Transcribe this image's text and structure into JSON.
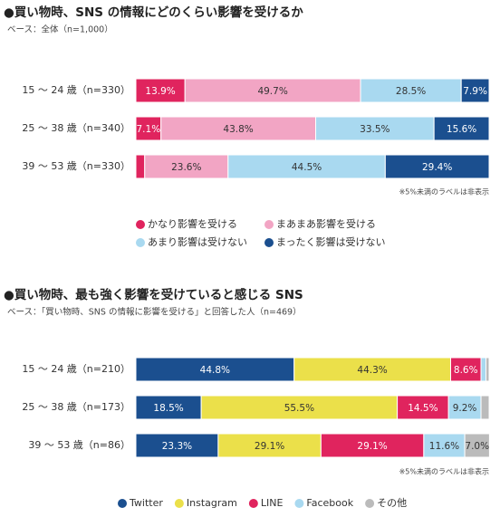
{
  "chart_data": [
    {
      "type": "bar",
      "orientation": "horizontal",
      "stacked": true,
      "title": "●買い物時、SNS の情報にどのくらい影響を受けるか",
      "subtitle": "ベース：全体（n=1,000）",
      "categories": [
        "15 ～ 24 歳（n=330）",
        "25 ～ 38 歳（n=340）",
        "39 ～ 53 歳（n=330）"
      ],
      "xlim": [
        0,
        100
      ],
      "series": [
        {
          "name": "かなり影響を受ける",
          "color": "#e0245e",
          "values": [
            13.9,
            7.1,
            2.5
          ],
          "value_labels": [
            "13.9%",
            "7.1%",
            null
          ]
        },
        {
          "name": "まあまあ影響を受ける",
          "color": "#f2a5c4",
          "values": [
            49.7,
            43.8,
            23.6
          ],
          "value_labels": [
            "49.7%",
            "43.8%",
            "23.6%"
          ]
        },
        {
          "name": "あまり影響は受けない",
          "color": "#a9d9f0",
          "values": [
            28.5,
            33.5,
            44.5
          ],
          "value_labels": [
            "28.5%",
            "33.5%",
            "44.5%"
          ]
        },
        {
          "name": "まったく影響は受けない",
          "color": "#1b4f8f",
          "values": [
            7.9,
            15.6,
            29.4
          ],
          "value_labels": [
            "7.9%",
            "15.6%",
            "29.4%"
          ]
        }
      ],
      "note": "※5%未満のラベルは非表示"
    },
    {
      "type": "bar",
      "orientation": "horizontal",
      "stacked": true,
      "title": "●買い物時、最も強く影響を受けていると感じる SNS",
      "subtitle": "ベース：「買い物時、SNS の情報に影響を受ける」と回答した人（n=469）",
      "categories": [
        "15 ～ 24 歳（n=210）",
        "25 ～ 38 歳（n=173）",
        "39 ～ 53 歳（n=86）"
      ],
      "xlim": [
        0,
        100
      ],
      "series": [
        {
          "name": "Twitter",
          "color": "#1b4f8f",
          "values": [
            44.8,
            18.5,
            23.3
          ],
          "value_labels": [
            "44.8%",
            "18.5%",
            "23.3%"
          ]
        },
        {
          "name": "Instagram",
          "color": "#ebe04a",
          "values": [
            44.3,
            55.5,
            29.1
          ],
          "value_labels": [
            "44.3%",
            "55.5%",
            "29.1%"
          ]
        },
        {
          "name": "LINE",
          "color": "#e0245e",
          "values": [
            8.6,
            14.5,
            29.1
          ],
          "value_labels": [
            "8.6%",
            "14.5%",
            "29.1%"
          ]
        },
        {
          "name": "Facebook",
          "color": "#a9d9f0",
          "values": [
            1.4,
            9.2,
            11.6
          ],
          "value_labels": [
            null,
            "9.2%",
            "11.6%"
          ]
        },
        {
          "name": "その他",
          "color": "#bbbbbb",
          "values": [
            0.9,
            2.3,
            7.0
          ],
          "value_labels": [
            null,
            null,
            "7.0%"
          ]
        }
      ],
      "note": "※5%未満のラベルは非表示"
    }
  ]
}
